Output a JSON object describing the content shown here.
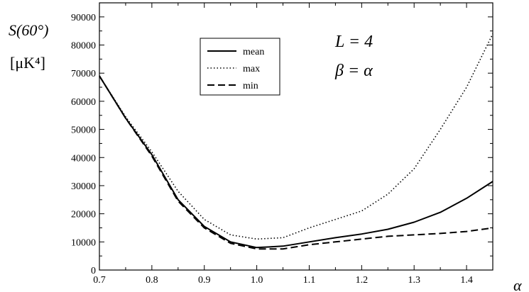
{
  "chart_data": {
    "type": "line",
    "title": "",
    "xlabel": "α",
    "ylabel": "S(60°)",
    "ylabel_unit": "[μK⁴]",
    "xlim": [
      0.7,
      1.45
    ],
    "ylim": [
      0,
      95000
    ],
    "x_ticks": [
      0.7,
      0.8,
      0.9,
      1.0,
      1.1,
      1.2,
      1.3,
      1.4
    ],
    "x_tick_labels": [
      "0.7",
      "0.8",
      "0.9",
      "1.0",
      "1.1",
      "1.2",
      "1.3",
      "1.4"
    ],
    "y_ticks": [
      0,
      10000,
      20000,
      30000,
      40000,
      50000,
      60000,
      70000,
      80000,
      90000
    ],
    "y_tick_labels": [
      "0",
      "10000",
      "20000",
      "30000",
      "40000",
      "50000",
      "60000",
      "70000",
      "80000",
      "90000"
    ],
    "grid": false,
    "legend_position": "top-left",
    "annotations": [
      {
        "text": "L = 4"
      },
      {
        "text": "β = α"
      }
    ],
    "x": [
      0.7,
      0.75,
      0.8,
      0.85,
      0.9,
      0.95,
      1.0,
      1.05,
      1.1,
      1.15,
      1.2,
      1.25,
      1.3,
      1.35,
      1.4,
      1.45
    ],
    "series": [
      {
        "name": "mean",
        "style": "solid",
        "values": [
          69000,
          54000,
          41000,
          25000,
          15500,
          10000,
          8000,
          8500,
          10000,
          11500,
          12800,
          14500,
          17000,
          20500,
          25500,
          31500
        ]
      },
      {
        "name": "max",
        "style": "dotted",
        "values": [
          69000,
          54500,
          42000,
          28000,
          18000,
          12500,
          11000,
          11500,
          15000,
          18000,
          21000,
          27000,
          36000,
          50000,
          65000,
          84000
        ]
      },
      {
        "name": "min",
        "style": "dashed",
        "values": [
          69000,
          54000,
          40500,
          24500,
          15000,
          9500,
          7500,
          7500,
          9000,
          10000,
          11000,
          12000,
          12500,
          13000,
          13700,
          15000
        ]
      }
    ]
  }
}
